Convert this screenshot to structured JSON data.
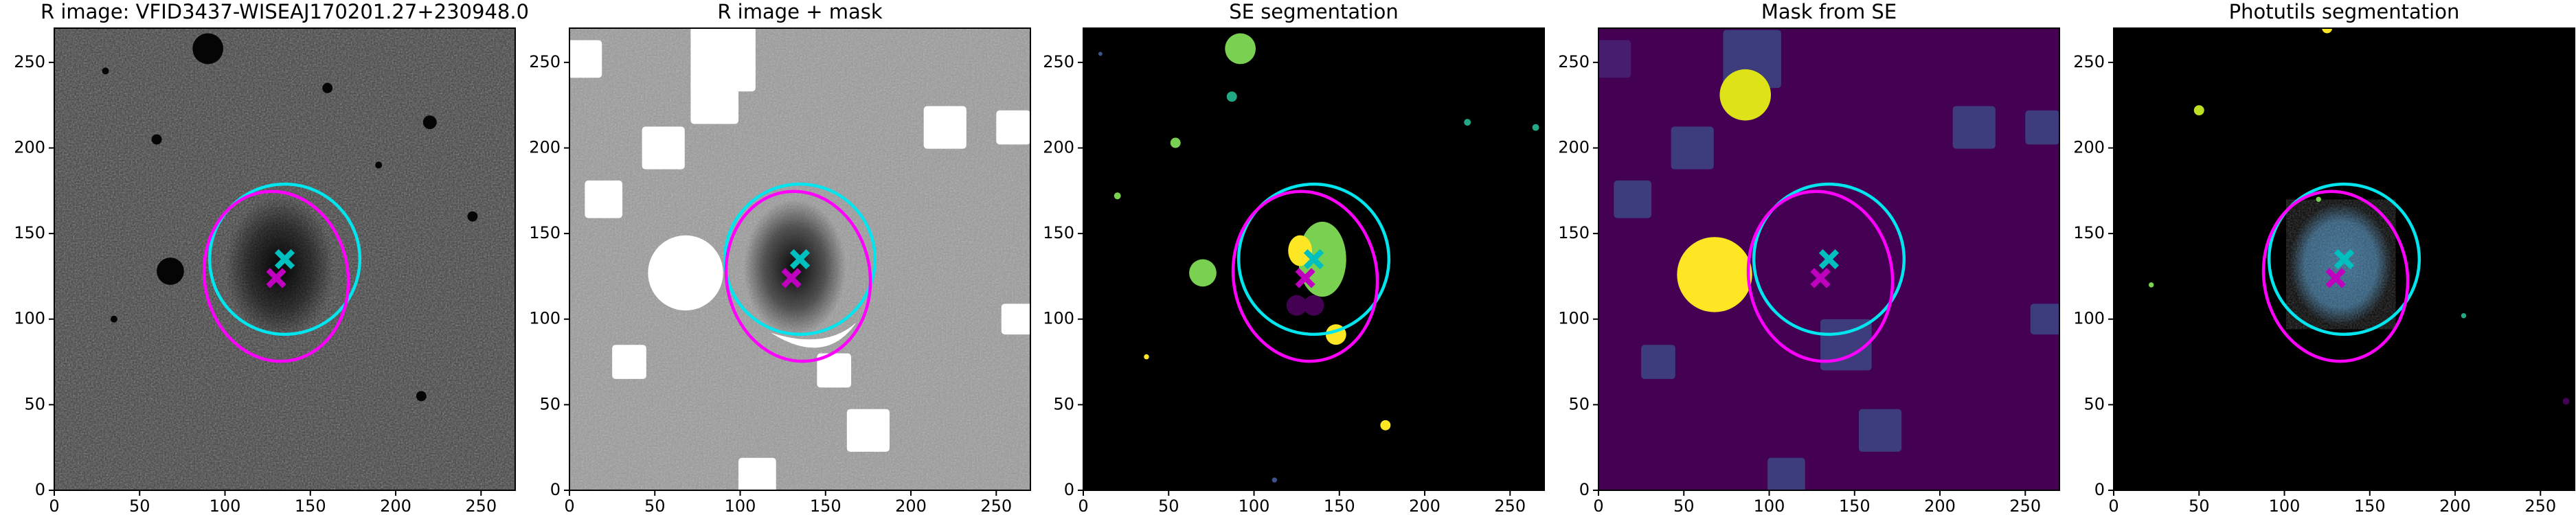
{
  "chart_data": [
    {
      "type": "image",
      "title": "R image: VFID3437-WISEAJ170201.27+230948.0",
      "xlim": [
        0,
        270
      ],
      "ylim": [
        0,
        270
      ],
      "xticks": [
        0,
        50,
        100,
        150,
        200,
        250
      ],
      "yticks": [
        0,
        50,
        100,
        150,
        200,
        250
      ],
      "series": [
        {
          "color": "#00bfbf",
          "x": [
            135
          ],
          "y": [
            135
          ]
        },
        {
          "color": "#bf00bf",
          "x": [
            130
          ],
          "y": [
            124
          ]
        }
      ],
      "ellipses": [
        {
          "color": "#00e5ee",
          "cx": 135,
          "cy": 135,
          "rx": 44,
          "ry": 44,
          "angle": 0
        },
        {
          "color": "#ff00ff",
          "cx": 130,
          "cy": 125,
          "rx": 42,
          "ry": 50,
          "angle": -10
        }
      ]
    },
    {
      "type": "image",
      "title": "R image + mask",
      "xlim": [
        0,
        270
      ],
      "ylim": [
        0,
        270
      ],
      "xticks": [
        0,
        50,
        100,
        150,
        200,
        250
      ],
      "yticks": [
        0,
        50,
        100,
        150,
        200,
        250
      ],
      "series": [
        {
          "color": "#00bfbf",
          "x": [
            135
          ],
          "y": [
            135
          ]
        },
        {
          "color": "#bf00bf",
          "x": [
            130
          ],
          "y": [
            124
          ]
        }
      ],
      "ellipses": [
        {
          "color": "#00e5ee",
          "cx": 135,
          "cy": 135,
          "rx": 44,
          "ry": 44,
          "angle": 0
        },
        {
          "color": "#ff00ff",
          "cx": 134,
          "cy": 125,
          "rx": 42,
          "ry": 50,
          "angle": -10
        }
      ]
    },
    {
      "type": "image",
      "title": "SE segmentation",
      "xlim": [
        0,
        270
      ],
      "ylim": [
        0,
        270
      ],
      "xticks": [
        0,
        50,
        100,
        150,
        200,
        250
      ],
      "yticks": [
        0,
        50,
        100,
        150,
        200,
        250
      ],
      "series": [
        {
          "color": "#00bfbf",
          "x": [
            135
          ],
          "y": [
            135
          ]
        },
        {
          "color": "#bf00bf",
          "x": [
            130
          ],
          "y": [
            124
          ]
        }
      ],
      "ellipses": [
        {
          "color": "#00e5ee",
          "cx": 135,
          "cy": 135,
          "rx": 44,
          "ry": 44,
          "angle": 0
        },
        {
          "color": "#ff00ff",
          "cx": 130,
          "cy": 125,
          "rx": 42,
          "ry": 50,
          "angle": -10
        }
      ]
    },
    {
      "type": "image",
      "title": "Mask from SE",
      "xlim": [
        0,
        270
      ],
      "ylim": [
        0,
        270
      ],
      "xticks": [
        0,
        50,
        100,
        150,
        200,
        250
      ],
      "yticks": [
        0,
        50,
        100,
        150,
        200,
        250
      ],
      "series": [
        {
          "color": "#00bfbf",
          "x": [
            135
          ],
          "y": [
            135
          ]
        },
        {
          "color": "#bf00bf",
          "x": [
            130
          ],
          "y": [
            124
          ]
        }
      ],
      "ellipses": [
        {
          "color": "#00e5ee",
          "cx": 135,
          "cy": 135,
          "rx": 44,
          "ry": 44,
          "angle": 0
        },
        {
          "color": "#ff00ff",
          "cx": 130,
          "cy": 125,
          "rx": 42,
          "ry": 50,
          "angle": -10
        }
      ]
    },
    {
      "type": "image",
      "title": "Photutils segmentation",
      "xlim": [
        0,
        270
      ],
      "ylim": [
        0,
        270
      ],
      "xticks": [
        0,
        50,
        100,
        150,
        200,
        250
      ],
      "yticks": [
        0,
        50,
        100,
        150,
        200,
        250
      ],
      "series": [
        {
          "color": "#00bfbf",
          "x": [
            135
          ],
          "y": [
            135
          ]
        },
        {
          "color": "#bf00bf",
          "x": [
            130
          ],
          "y": [
            124
          ]
        }
      ],
      "ellipses": [
        {
          "color": "#00e5ee",
          "cx": 135,
          "cy": 135,
          "rx": 44,
          "ry": 44,
          "angle": 0
        },
        {
          "color": "#ff00ff",
          "cx": 130,
          "cy": 125,
          "rx": 42,
          "ry": 50,
          "angle": -10
        }
      ]
    }
  ]
}
